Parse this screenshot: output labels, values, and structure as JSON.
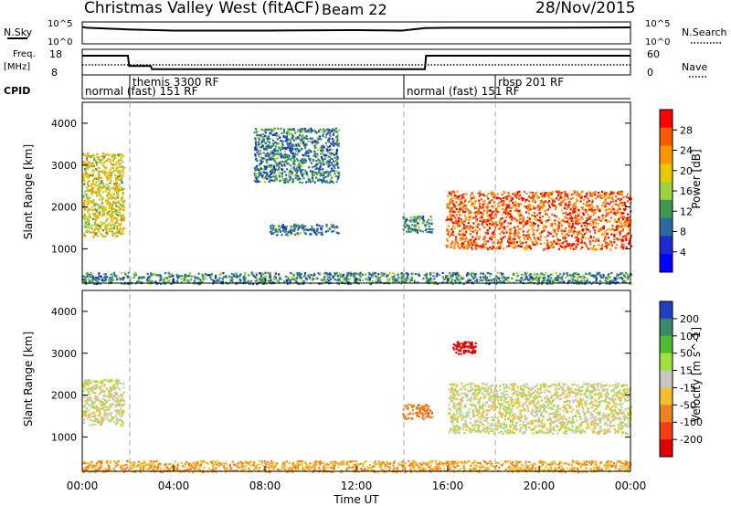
{
  "header": {
    "title": "Christmas Valley West (fitACF)",
    "beam": "Beam 22",
    "date": "28/Nov/2015"
  },
  "top_panels": {
    "nsky_label": "N.Sky",
    "nsky_ticks": [
      "10^5",
      "10^0"
    ],
    "nsky_right_ticks": [
      "10^5",
      "10^0"
    ],
    "nsearch_label": "N.Search",
    "freq_label": [
      "Freq.",
      "[MHz]"
    ],
    "freq_ticks": [
      "18",
      "8"
    ],
    "nave_ticks": [
      "60",
      "0"
    ],
    "nave_label": "Nave",
    "cpid_label": "CPID",
    "cpid_segments": [
      {
        "start_h": 0.0,
        "labels": [
          "normal (fast) 151 RF"
        ]
      },
      {
        "start_h": 2.0,
        "labels": [
          "themis 3300 RF"
        ]
      },
      {
        "start_h": 14.0,
        "labels": [
          "normal (fast) 151 RF"
        ]
      },
      {
        "start_h": 18.0,
        "labels": [
          "rbsp 201 RF"
        ]
      }
    ]
  },
  "power_panel": {
    "ylabel": "Slant Range [km]",
    "yticks": [
      "4000",
      "3000",
      "2000",
      "1000"
    ],
    "colorbar_label": "Power [dB]",
    "colorbar_ticks": [
      "28",
      "24",
      "20",
      "16",
      "12",
      "8",
      "4"
    ],
    "colorbar_colors": [
      "#ff0000",
      "#ff5a00",
      "#ff9600",
      "#e6c800",
      "#9cd23c",
      "#3c9a50",
      "#2a6aa0",
      "#1e2ad0",
      "#0000ff"
    ]
  },
  "velocity_panel": {
    "ylabel": "Slant Range [km]",
    "yticks": [
      "4000",
      "3000",
      "2000",
      "1000"
    ],
    "colorbar_label": "Velocity [m s^-1]",
    "colorbar_ticks": [
      "200",
      "100",
      "50",
      "15",
      "-15",
      "-50",
      "-100",
      "-200"
    ],
    "colorbar_colors": [
      "#2040c0",
      "#3c8a6a",
      "#4cbc34",
      "#a0e040",
      "#c8c8c0",
      "#f0c030",
      "#f08020",
      "#f04010",
      "#e00000"
    ]
  },
  "x_axis": {
    "xlabel": "Time UT",
    "ticks": [
      "00:00",
      "04:00",
      "08:00",
      "12:00",
      "16:00",
      "20:00",
      "00:00"
    ]
  },
  "chart_data": [
    {
      "type": "line",
      "name_label": "N.Sky",
      "x": [
        0,
        0.2,
        2,
        4,
        8,
        12,
        14,
        15,
        16,
        20,
        24
      ],
      "y_log10": [
        4.2,
        4.0,
        3.6,
        3.3,
        3.3,
        3.4,
        3.3,
        3.9,
        4.0,
        4.0,
        4.1
      ],
      "xlim": [
        0,
        24
      ]
    },
    {
      "type": "line",
      "name_label": "Freq. [MHz]",
      "x": [
        0,
        2,
        2.05,
        3,
        3.05,
        15,
        15.05,
        24
      ],
      "values": [
        15.5,
        15.5,
        11.5,
        11.5,
        10.2,
        10.2,
        15.5,
        15.5
      ],
      "ylim": [
        8,
        18
      ]
    },
    {
      "type": "heatmap",
      "title": "Power",
      "xlim": [
        0,
        24
      ],
      "ylim": [
        180,
        4500
      ],
      "zlim_db": [
        0,
        30
      ],
      "features": [
        {
          "x": [
            0,
            1.8
          ],
          "range_km": [
            1300,
            3300
          ],
          "power_db": 18
        },
        {
          "x": [
            15.9,
            24
          ],
          "range_km": [
            1000,
            2400
          ],
          "power_db": 26
        },
        {
          "x": [
            14,
            15.3
          ],
          "range_km": [
            1400,
            1800
          ],
          "power_db": 10
        },
        {
          "x": [
            7.5,
            11.2
          ],
          "range_km": [
            2600,
            3900
          ],
          "power_db": 9
        },
        {
          "x": [
            8.2,
            11.2
          ],
          "range_km": [
            1350,
            1600
          ],
          "power_db": 8
        },
        {
          "x": [
            0,
            24
          ],
          "range_km": [
            180,
            450
          ],
          "power_db": 10
        }
      ]
    },
    {
      "type": "heatmap",
      "title": "Velocity",
      "xlim": [
        0,
        24
      ],
      "ylim": [
        180,
        4500
      ],
      "zlim": [
        -200,
        200
      ],
      "features": [
        {
          "x": [
            0,
            1.8
          ],
          "range_km": [
            1300,
            2400
          ],
          "velocity": 0
        },
        {
          "x": [
            16,
            24
          ],
          "range_km": [
            1100,
            2300
          ],
          "velocity": 0
        },
        {
          "x": [
            14,
            15.3
          ],
          "range_km": [
            1450,
            1800
          ],
          "velocity": -60
        },
        {
          "x": [
            16.2,
            17.2
          ],
          "range_km": [
            3000,
            3300
          ],
          "velocity": -200
        },
        {
          "x": [
            0,
            24
          ],
          "range_km": [
            180,
            450
          ],
          "velocity": -30
        }
      ]
    }
  ]
}
